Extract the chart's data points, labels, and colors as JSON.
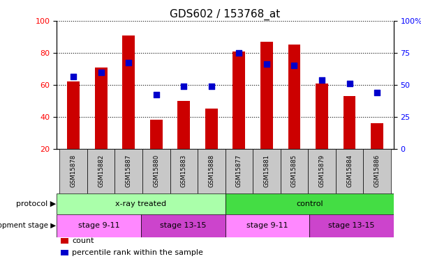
{
  "title": "GDS602 / 153768_at",
  "samples": [
    "GSM15878",
    "GSM15882",
    "GSM15887",
    "GSM15880",
    "GSM15883",
    "GSM15888",
    "GSM15877",
    "GSM15881",
    "GSM15885",
    "GSM15879",
    "GSM15884",
    "GSM15886"
  ],
  "counts": [
    62,
    71,
    91,
    38,
    50,
    45,
    81,
    87,
    85,
    61,
    53,
    36
  ],
  "percentiles_left_axis": [
    65,
    68,
    74,
    54,
    59,
    59,
    80,
    73,
    72,
    63,
    61,
    55
  ],
  "ylim_left": [
    20,
    100
  ],
  "yticks_left": [
    20,
    40,
    60,
    80,
    100
  ],
  "yticks_right": [
    0,
    25,
    50,
    75,
    100
  ],
  "yticklabels_right": [
    "0",
    "25",
    "50",
    "75",
    "100%"
  ],
  "bar_color": "#cc0000",
  "dot_color": "#0000cc",
  "gray_box_color": "#c8c8c8",
  "protocol_groups": [
    {
      "label": "x-ray treated",
      "start": 0,
      "end": 6,
      "color": "#aaffaa"
    },
    {
      "label": "control",
      "start": 6,
      "end": 12,
      "color": "#44dd44"
    }
  ],
  "stage_groups": [
    {
      "label": "stage 9-11",
      "start": 0,
      "end": 3,
      "color": "#ff88ff"
    },
    {
      "label": "stage 13-15",
      "start": 3,
      "end": 6,
      "color": "#cc44cc"
    },
    {
      "label": "stage 9-11",
      "start": 6,
      "end": 9,
      "color": "#ff88ff"
    },
    {
      "label": "stage 13-15",
      "start": 9,
      "end": 12,
      "color": "#cc44cc"
    }
  ],
  "legend_count_label": "count",
  "legend_pct_label": "percentile rank within the sample",
  "protocol_label": "protocol",
  "stage_label": "development stage",
  "title_fontsize": 11,
  "tick_fontsize": 8,
  "bar_width": 0.45,
  "dot_size": 30
}
